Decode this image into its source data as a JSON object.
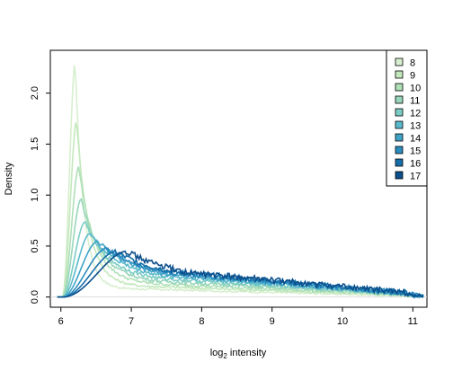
{
  "chart_data": {
    "type": "line",
    "title": "",
    "xlabel_main": "log",
    "xlabel_sub": "2",
    "xlabel_rest": " intensity",
    "ylabel": "Density",
    "xlim": [
      5.85,
      11.2
    ],
    "ylim": [
      -0.1,
      2.42
    ],
    "x_ticks": [
      6,
      7,
      8,
      9,
      10,
      11
    ],
    "y_ticks": [
      0.0,
      0.5,
      1.0,
      1.5,
      2.0
    ],
    "y_tick_labels": [
      "0.0",
      "0.5",
      "1.0",
      "1.5",
      "2.0"
    ],
    "grid": false,
    "legend_position": "top-right",
    "series": [
      {
        "name": "8",
        "color": "#d7efcf",
        "peak_x": 6.2,
        "peak_y": 2.32,
        "tail": 0.08
      },
      {
        "name": "9",
        "color": "#c4e8bd",
        "peak_x": 6.22,
        "peak_y": 1.74,
        "tail": 0.11
      },
      {
        "name": "10",
        "color": "#afe0b8",
        "peak_x": 6.25,
        "peak_y": 1.28,
        "tail": 0.14
      },
      {
        "name": "11",
        "color": "#97d6bb",
        "peak_x": 6.28,
        "peak_y": 0.96,
        "tail": 0.17
      },
      {
        "name": "12",
        "color": "#7bccc4",
        "peak_x": 6.33,
        "peak_y": 0.73,
        "tail": 0.2
      },
      {
        "name": "13",
        "color": "#5bb9cc",
        "peak_x": 6.4,
        "peak_y": 0.62,
        "tail": 0.23
      },
      {
        "name": "14",
        "color": "#3fa3c8",
        "peak_x": 6.5,
        "peak_y": 0.54,
        "tail": 0.25
      },
      {
        "name": "15",
        "color": "#2b8cbe",
        "peak_x": 6.62,
        "peak_y": 0.47,
        "tail": 0.27
      },
      {
        "name": "16",
        "color": "#176fa9",
        "peak_x": 6.75,
        "peak_y": 0.44,
        "tail": 0.28
      },
      {
        "name": "17",
        "color": "#0b4f8c",
        "peak_x": 6.92,
        "peak_y": 0.45,
        "tail": 0.29
      }
    ]
  }
}
